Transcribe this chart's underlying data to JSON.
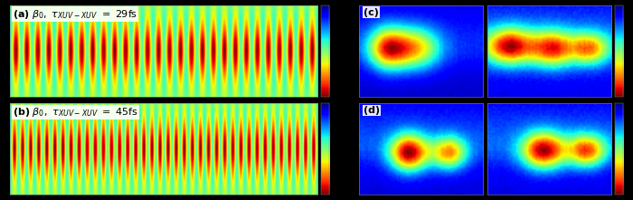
{
  "label_fontsize": 8,
  "tau_a": 29,
  "tau_b": 45,
  "background_color": "#000000",
  "panel_ab_bg_color": "jet",
  "fringe_freq_a": 28,
  "fringe_freq_b": 38,
  "nx_ab": 300,
  "ny_ab": 40,
  "nx_cd": 70,
  "ny_cd": 55,
  "blobs_c1": [
    [
      -0.55,
      0.05,
      0.22,
      0.32,
      1.0
    ],
    [
      -0.1,
      0.05,
      0.28,
      0.32,
      0.82
    ]
  ],
  "blobs_c2": [
    [
      -0.65,
      0.1,
      0.28,
      0.28,
      0.75
    ],
    [
      0.05,
      0.05,
      0.25,
      0.28,
      0.65
    ],
    [
      0.65,
      0.05,
      0.22,
      0.25,
      0.55
    ]
  ],
  "blobs_d1": [
    [
      -0.2,
      -0.1,
      0.22,
      0.28,
      1.0
    ],
    [
      0.45,
      -0.1,
      0.2,
      0.25,
      0.72
    ]
  ],
  "blobs_d2": [
    [
      -0.1,
      -0.05,
      0.25,
      0.28,
      0.88
    ],
    [
      0.6,
      -0.05,
      0.22,
      0.25,
      0.72
    ]
  ]
}
